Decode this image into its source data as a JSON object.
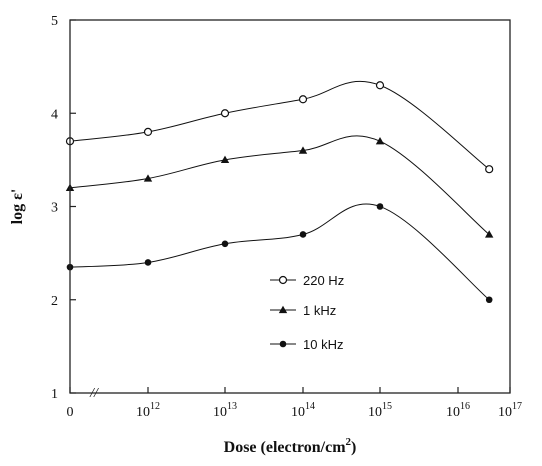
{
  "chart_data": {
    "type": "line",
    "xlabel": "Dose (electron/cm2)",
    "ylabel": "log ε'",
    "ylim": [
      1,
      5
    ],
    "x_categories": [
      "0",
      "10^12",
      "10^13",
      "10^14",
      "10^15",
      "10^16",
      "10^17"
    ],
    "x_tick_base": "10",
    "x_tick_exponents": [
      "",
      "12",
      "13",
      "14",
      "15",
      "16",
      "17"
    ],
    "x_tick_mantissas": [
      "0",
      "10",
      "10",
      "10",
      "10",
      "10",
      "10"
    ],
    "axis_break_symbol": "//",
    "yticks": [
      "1",
      "2",
      "3",
      "4",
      "5"
    ],
    "x_log_positions": [
      0,
      12,
      13,
      14,
      15,
      16.6
    ],
    "series": [
      {
        "name": "220 Hz",
        "marker": "open-circle",
        "color": "#111111",
        "x": [
          "0",
          "10^12",
          "10^13",
          "10^14",
          "10^15",
          "4x10^16"
        ],
        "y": [
          3.7,
          3.8,
          4.0,
          4.15,
          4.3,
          3.4
        ]
      },
      {
        "name": "1 kHz",
        "marker": "filled-triangle",
        "color": "#111111",
        "x": [
          "0",
          "10^12",
          "10^13",
          "10^14",
          "10^15",
          "4x10^16"
        ],
        "y": [
          3.2,
          3.3,
          3.5,
          3.6,
          3.7,
          2.7
        ]
      },
      {
        "name": "10 kHz",
        "marker": "filled-circle",
        "color": "#111111",
        "x": [
          "0",
          "10^12",
          "10^13",
          "10^14",
          "10^15",
          "4x10^16"
        ],
        "y": [
          2.35,
          2.4,
          2.6,
          2.7,
          3.0,
          2.0
        ]
      }
    ],
    "grid": false,
    "legend_position": "center-bottom"
  }
}
